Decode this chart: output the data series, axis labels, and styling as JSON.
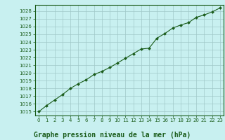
{
  "x": [
    0,
    1,
    2,
    3,
    4,
    5,
    6,
    7,
    8,
    9,
    10,
    11,
    12,
    13,
    14,
    15,
    16,
    17,
    18,
    19,
    20,
    21,
    22,
    23
  ],
  "y": [
    1015.0,
    1015.8,
    1016.5,
    1017.2,
    1018.0,
    1018.6,
    1019.1,
    1019.8,
    1020.2,
    1020.7,
    1021.3,
    1021.9,
    1022.5,
    1023.1,
    1023.2,
    1024.5,
    1025.1,
    1025.8,
    1026.2,
    1026.5,
    1027.2,
    1027.5,
    1027.9,
    1028.4
  ],
  "ylim": [
    1014.5,
    1028.8
  ],
  "xlim": [
    -0.5,
    23.5
  ],
  "yticks": [
    1015,
    1016,
    1017,
    1018,
    1019,
    1020,
    1021,
    1022,
    1023,
    1024,
    1025,
    1026,
    1027,
    1028
  ],
  "xticks": [
    0,
    1,
    2,
    3,
    4,
    5,
    6,
    7,
    8,
    9,
    10,
    11,
    12,
    13,
    14,
    15,
    16,
    17,
    18,
    19,
    20,
    21,
    22,
    23
  ],
  "line_color": "#1a5c1a",
  "marker_color": "#1a5c1a",
  "bg_color": "#c8f0f0",
  "grid_color": "#a0c8c8",
  "xlabel": "Graphe pression niveau de la mer (hPa)",
  "tick_label_color": "#1a5c1a",
  "tick_label_size": 5.0,
  "xlabel_size": 7.0,
  "xlabel_color": "#1a5c1a",
  "spine_color": "#1a5c1a"
}
